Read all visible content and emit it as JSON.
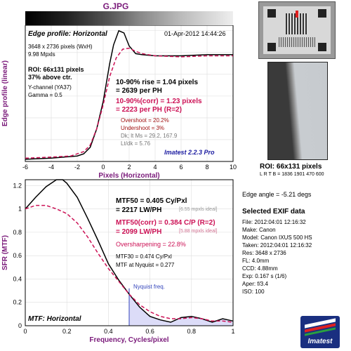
{
  "file_title": "G.JPG",
  "chart_data": [
    {
      "type": "line",
      "name": "edge_profile",
      "title": "Edge profile: Horizontal",
      "date": "01-Apr-2012 14:44:26",
      "xlabel": "Pixels (Horizontal)",
      "ylabel": "Edge profile (linear)",
      "xlim": [
        -6,
        10
      ],
      "ylim": [
        0,
        1.25
      ],
      "x_ticks": [
        "-6",
        "-4",
        "-2",
        "0",
        "2",
        "4",
        "6",
        "8",
        "10"
      ],
      "info_lines": [
        "3648 x 2736 pixels (WxH)",
        "9.98 Mpxls"
      ],
      "roi_lines": [
        "ROI: 66x131 pixels",
        "37% above ctr."
      ],
      "channel_lines": [
        "Y-channel  (YA37)",
        "Gamma = 0.5"
      ],
      "rise_lines": [
        "10-90% rise = 1.04 pixels",
        "= 2639 per PH"
      ],
      "corr_lines": [
        "10-90%(corr) = 1.23 pixels",
        "= 2223 per PH  (R=2)"
      ],
      "overshoot": "Overshoot = 20.2%",
      "undershoot": "Undershoot = 3%",
      "dk_lines": [
        "Dk; lt Ms = 29.2, 167.9",
        "Lt/dk = 5.76"
      ],
      "brand": "Imatest 2.2.3 Pro",
      "series": [
        {
          "color": "#000000",
          "x": [
            -6,
            -4,
            -2,
            -1.5,
            -1,
            -0.5,
            0,
            0.5,
            0.8,
            1.2,
            1.6,
            2,
            2.5,
            3,
            4,
            5,
            6,
            8,
            10
          ],
          "y": [
            0.02,
            0.03,
            0.05,
            0.07,
            0.13,
            0.3,
            0.55,
            0.9,
            1.07,
            1.2,
            1.18,
            1.06,
            0.99,
            0.98,
            0.97,
            0.97,
            0.97,
            0.98,
            0.98
          ]
        },
        {
          "color": "#cc1155",
          "dashed": true,
          "x": [
            -6,
            -4,
            -2.5,
            -1.5,
            -1,
            -0.5,
            0,
            0.5,
            1,
            1.5,
            2,
            2.5,
            3,
            4,
            6,
            8,
            10
          ],
          "y": [
            0.03,
            0.04,
            0.05,
            0.09,
            0.15,
            0.3,
            0.52,
            0.78,
            0.95,
            1.03,
            1.04,
            1.01,
            0.99,
            0.97,
            0.96,
            0.97,
            0.97
          ]
        }
      ]
    },
    {
      "type": "line",
      "name": "mtf",
      "title": "MTF: Horizontal",
      "xlabel": "Frequency, Cycles/pixel",
      "ylabel": "SFR (MTF)",
      "xlim": [
        0,
        1
      ],
      "ylim": [
        0,
        1.25
      ],
      "x_ticks": [
        "0",
        "0.2",
        "0.4",
        "0.6",
        "0.8",
        "1"
      ],
      "y_ticks": [
        "0",
        "0.2",
        "0.4",
        "0.6",
        "0.8",
        "1",
        "1.2"
      ],
      "mtf50_lines": [
        "MTF50 = 0.405 Cy/Pxl",
        "= 2217 LW/PH"
      ],
      "mtf50_ideal": "[6.55 mpxls ideal]",
      "corr_lines": [
        "MTF50(corr) = 0.384 C/P  (R=2)",
        "= 2099 LW/PH"
      ],
      "corr_ideal": "[5.88 mpxls ideal]",
      "oversharpening": "Oversharpening = 22.8%",
      "mtf30": "MTF30 = 0.474 Cy/Pxl",
      "mtf_nyq": "MTF at Nyquist = 0.277",
      "nyquist_label": "Nyquist freq.",
      "nyquist_x": 0.5,
      "series": [
        {
          "color": "#000000",
          "x": [
            0,
            0.05,
            0.1,
            0.15,
            0.18,
            0.2,
            0.25,
            0.3,
            0.35,
            0.4,
            0.45,
            0.5,
            0.55,
            0.6,
            0.65,
            0.7,
            0.75,
            0.8,
            0.85,
            0.9,
            0.95,
            1
          ],
          "y": [
            1,
            1.1,
            1.19,
            1.25,
            1.25,
            1.22,
            1.1,
            0.92,
            0.73,
            0.53,
            0.39,
            0.27,
            0.16,
            0.08,
            0.05,
            0.03,
            0.07,
            0.08,
            0.06,
            0.03,
            0.06,
            0.04
          ]
        },
        {
          "color": "#cc1155",
          "dashed": true,
          "x": [
            0,
            0.05,
            0.1,
            0.15,
            0.2,
            0.25,
            0.3,
            0.35,
            0.4,
            0.45,
            0.5,
            0.55,
            0.6,
            0.65,
            0.7,
            0.75,
            0.8,
            0.85,
            0.9,
            0.95,
            1
          ],
          "y": [
            1,
            1.03,
            1.03,
            1.0,
            0.96,
            0.88,
            0.76,
            0.62,
            0.49,
            0.38,
            0.27,
            0.18,
            0.12,
            0.08,
            0.06,
            0.06,
            0.07,
            0.06,
            0.04,
            0.04,
            0.03
          ]
        }
      ]
    }
  ],
  "roi": {
    "label": "ROI: 66x131 pixels",
    "coords": "L R  T B = 1836 1901  470 600",
    "edge_angle": "Edge angle = -5.21 degs"
  },
  "exif": {
    "heading": "Selected EXIF data",
    "rows": [
      "File:  2012:04:01 12:16:32",
      "Make:  Canon",
      "Model:  Canon IXUS 500 HS",
      "Taken:  2012:04:01 12:16:32",
      "Res:  3648 x 2736",
      "FL:    4.0mm",
      "CCD:   4.88mm",
      "Exp:   0.167 s  (1/6)",
      "Aper:   f/3.4",
      "ISO:    100"
    ]
  },
  "logo_text": "Imatest"
}
